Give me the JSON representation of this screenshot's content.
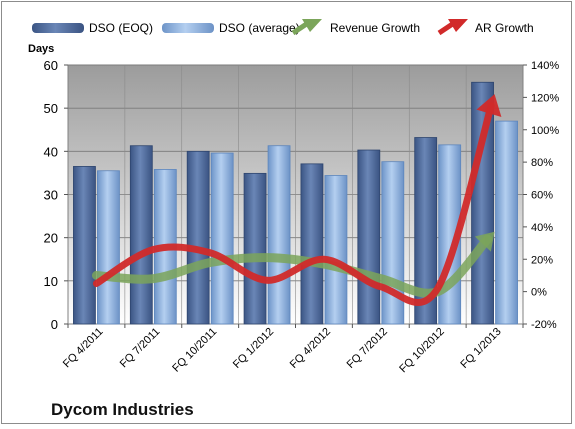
{
  "chart_data": {
    "type": "bar+line",
    "title": "Dycom Industries",
    "ylabel": "Days",
    "ylim": [
      0,
      60
    ],
    "y_ticks": [
      "0",
      "10",
      "20",
      "30",
      "40",
      "50",
      "60"
    ],
    "y2lim": [
      -20,
      140
    ],
    "y2_ticks": [
      "-20%",
      "0%",
      "20%",
      "40%",
      "60%",
      "80%",
      "100%",
      "120%",
      "140%"
    ],
    "categories": [
      "FQ 4/2011",
      "FQ 7/2011",
      "FQ 10/2011",
      "FQ 1/2012",
      "FQ 4/2012",
      "FQ 7/2012",
      "FQ 10/2012",
      "FQ 1/2013"
    ],
    "grid": true,
    "legend": "top",
    "bar_series": [
      {
        "name": "DSO (EOQ)",
        "values": [
          36.5,
          41.3,
          40.0,
          34.9,
          37.1,
          40.3,
          43.2,
          56.0
        ],
        "color": "#4f6d9e"
      },
      {
        "name": "DSO (average)",
        "values": [
          35.5,
          35.8,
          39.6,
          41.3,
          34.4,
          37.6,
          41.5,
          47.0
        ],
        "color": "#8fb4e0"
      }
    ],
    "line_series": [
      {
        "name": "Revenue Growth",
        "axis": "secondary",
        "values": [
          10,
          8,
          18,
          21,
          17,
          8,
          0,
          37
        ],
        "color": "#7ba55a"
      },
      {
        "name": "AR Growth",
        "axis": "secondary",
        "values": [
          5,
          26,
          24,
          7,
          20,
          3,
          2,
          122
        ],
        "color": "#d12a2a"
      }
    ]
  }
}
